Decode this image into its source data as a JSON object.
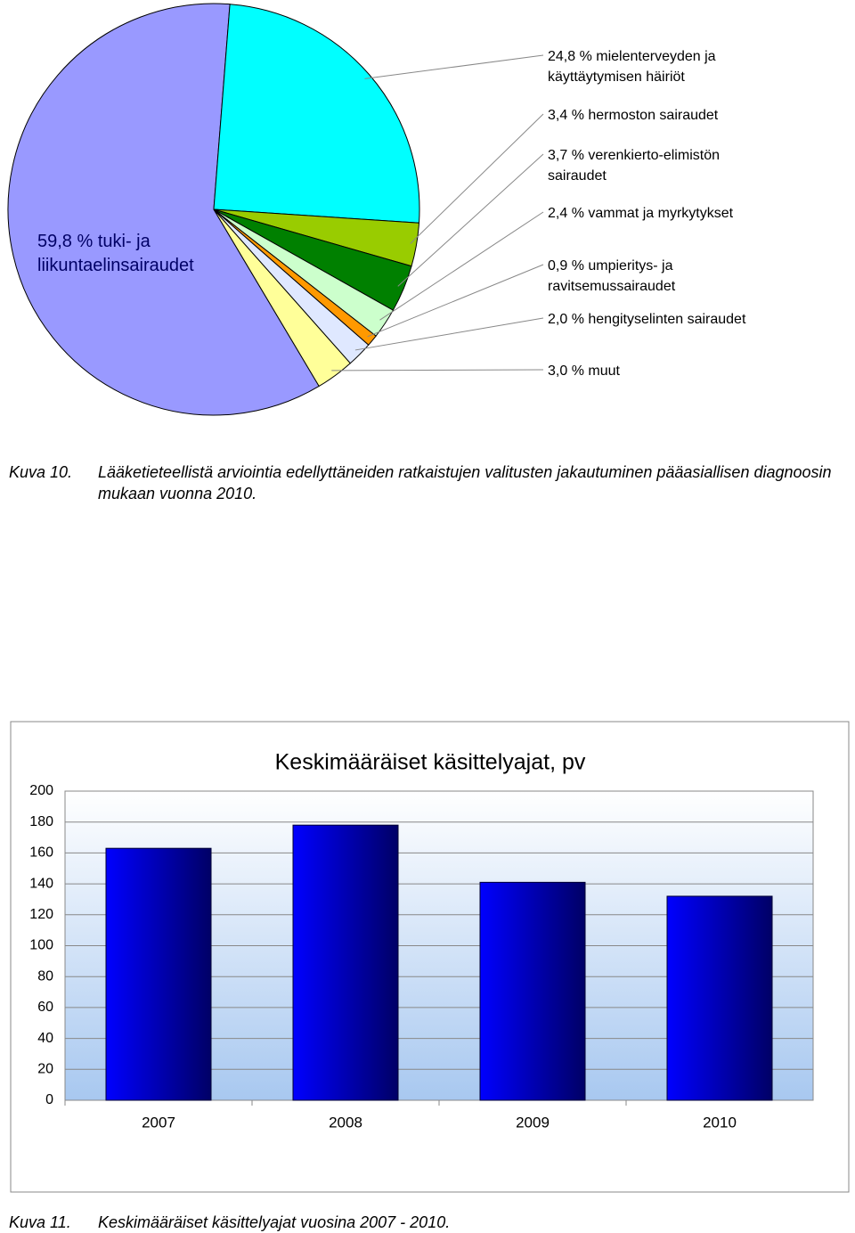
{
  "chart_data": [
    {
      "type": "pie",
      "categories": [
        "tuki- ja liikuntaelinsairaudet",
        "mielenterveyden ja käyttäytymisen häiriöt",
        "hermoston sairaudet",
        "verenkierto-elimistön sairaudet",
        "vammat ja myrkytykset",
        "umpieritys- ja ravitsemussairaudet",
        "hengityselinten sairaudet",
        "muut"
      ],
      "values": [
        59.8,
        24.8,
        3.4,
        3.7,
        2.4,
        0.9,
        2.0,
        3.0
      ],
      "value_labels": [
        "59,8 %",
        "24,8 %",
        "3,4 %",
        "3,7 %",
        "2,4 %",
        "0,9 %",
        "2,0 %",
        "3,0 %"
      ],
      "colors": [
        "#9999ff",
        "#00ffff",
        "#99cc00",
        "#008000",
        "#ccffcc",
        "#ff9900",
        "#dfe8ff",
        "#ffff99"
      ]
    },
    {
      "type": "bar",
      "title": "Keskimääräiset käsittelyajat, pv",
      "categories": [
        "2007",
        "2008",
        "2009",
        "2010"
      ],
      "values": [
        163,
        178,
        141,
        132
      ],
      "ylim": [
        0,
        200
      ],
      "yticks": [
        0,
        20,
        40,
        60,
        80,
        100,
        120,
        140,
        160,
        180,
        200
      ],
      "grid": true,
      "color": "#0000cc"
    }
  ],
  "captions": [
    {
      "label": "Kuva 10.",
      "text": "Lääketieteellistä arviointia edellyttäneiden ratkaistujen valitusten jakautuminen pääasiallisen diagnoosin mukaan vuonna 2010."
    },
    {
      "label": "Kuva 11.",
      "text": "Keskimääräiset käsittelyajat vuosina 2007 - 2010."
    }
  ]
}
